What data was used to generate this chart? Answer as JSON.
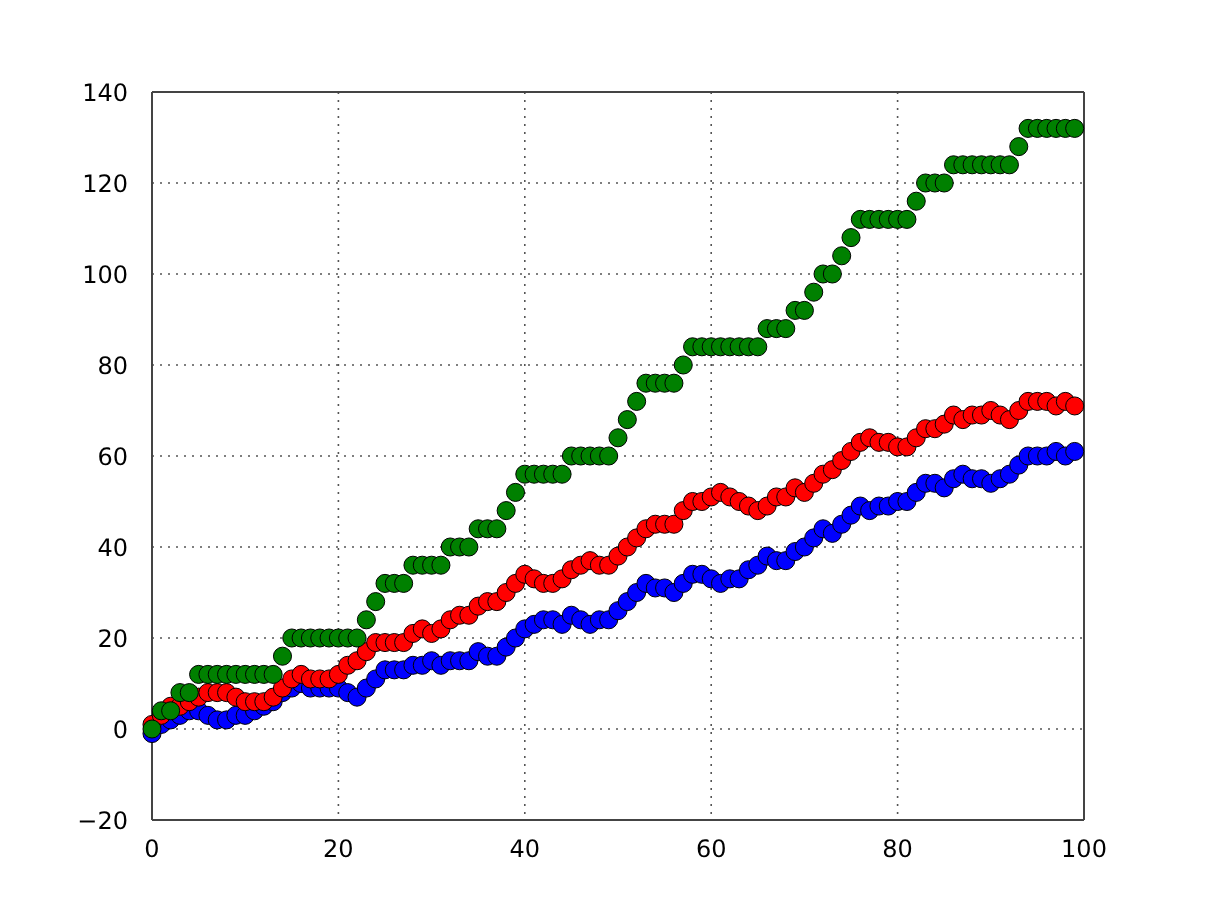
{
  "chart_data": {
    "type": "scatter",
    "marker": "circle",
    "grid": true,
    "x": [
      0,
      1,
      2,
      3,
      4,
      5,
      6,
      7,
      8,
      9,
      10,
      11,
      12,
      13,
      14,
      15,
      16,
      17,
      18,
      19,
      20,
      21,
      22,
      23,
      24,
      25,
      26,
      27,
      28,
      29,
      30,
      31,
      32,
      33,
      34,
      35,
      36,
      37,
      38,
      39,
      40,
      41,
      42,
      43,
      44,
      45,
      46,
      47,
      48,
      49,
      50,
      51,
      52,
      53,
      54,
      55,
      56,
      57,
      58,
      59,
      60,
      61,
      62,
      63,
      64,
      65,
      66,
      67,
      68,
      69,
      70,
      71,
      72,
      73,
      74,
      75,
      76,
      77,
      78,
      79,
      80,
      81,
      82,
      83,
      84,
      85,
      86,
      87,
      88,
      89,
      90,
      91,
      92,
      93,
      94,
      95,
      96,
      97,
      98,
      99
    ],
    "series": [
      {
        "color": "#0000ff",
        "values": [
          -1,
          1,
          2,
          3,
          4,
          4,
          3,
          2,
          2,
          3,
          3,
          4,
          5,
          6,
          8,
          9,
          10,
          9,
          9,
          9,
          9,
          8,
          7,
          9,
          11,
          13,
          13,
          13,
          14,
          14,
          15,
          14,
          15,
          15,
          15,
          17,
          16,
          16,
          18,
          20,
          22,
          23,
          24,
          24,
          23,
          25,
          24,
          23,
          24,
          24,
          26,
          28,
          30,
          32,
          31,
          31,
          30,
          32,
          34,
          34,
          33,
          32,
          33,
          33,
          35,
          36,
          38,
          37,
          37,
          39,
          40,
          42,
          44,
          43,
          45,
          47,
          49,
          48,
          49,
          49,
          50,
          50,
          52,
          54,
          54,
          53,
          55,
          56,
          55,
          55,
          54,
          55,
          56,
          58,
          60,
          60,
          60,
          61,
          60,
          61
        ]
      },
      {
        "color": "#ff0000",
        "values": [
          1,
          3,
          5,
          5,
          6,
          7,
          8,
          8,
          8,
          7,
          6,
          6,
          6,
          7,
          9,
          11,
          12,
          11,
          11,
          11,
          12,
          14,
          15,
          17,
          19,
          19,
          19,
          19,
          21,
          22,
          21,
          22,
          24,
          25,
          25,
          27,
          28,
          28,
          30,
          32,
          34,
          33,
          32,
          32,
          33,
          35,
          36,
          37,
          36,
          36,
          38,
          40,
          42,
          44,
          45,
          45,
          45,
          48,
          50,
          50,
          51,
          52,
          51,
          50,
          49,
          48,
          49,
          51,
          51,
          53,
          52,
          54,
          56,
          57,
          59,
          61,
          63,
          64,
          63,
          63,
          62,
          62,
          64,
          66,
          66,
          67,
          69,
          68,
          69,
          69,
          70,
          69,
          68,
          70,
          72,
          72,
          72,
          71,
          72,
          71
        ]
      },
      {
        "color": "#008000",
        "values": [
          0,
          4,
          4,
          8,
          8,
          12,
          12,
          12,
          12,
          12,
          12,
          12,
          12,
          12,
          16,
          20,
          20,
          20,
          20,
          20,
          20,
          20,
          20,
          24,
          28,
          32,
          32,
          32,
          36,
          36,
          36,
          36,
          40,
          40,
          40,
          44,
          44,
          44,
          48,
          52,
          56,
          56,
          56,
          56,
          56,
          60,
          60,
          60,
          60,
          60,
          64,
          68,
          72,
          76,
          76,
          76,
          76,
          80,
          84,
          84,
          84,
          84,
          84,
          84,
          84,
          84,
          88,
          88,
          88,
          92,
          92,
          96,
          100,
          100,
          104,
          108,
          112,
          112,
          112,
          112,
          112,
          112,
          116,
          120,
          120,
          120,
          124,
          124,
          124,
          124,
          124,
          124,
          124,
          128,
          132,
          132,
          132,
          132,
          132,
          132
        ]
      }
    ],
    "xlim": [
      0,
      100
    ],
    "xticks": [
      0,
      20,
      40,
      60,
      80,
      100
    ],
    "ylim": [
      -20,
      140
    ],
    "yticks": [
      {
        "value": -20,
        "label": "−20"
      },
      0,
      20,
      40,
      60,
      80,
      100,
      120,
      140
    ]
  }
}
